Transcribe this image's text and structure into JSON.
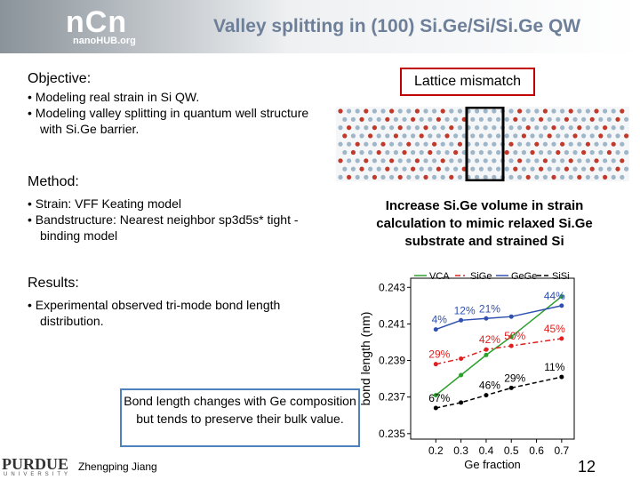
{
  "header": {
    "logo": "nCn",
    "logo_sub": "nanoHUB.org",
    "title": "Valley splitting in (100) Si.Ge/Si/Si.Ge QW"
  },
  "objective": {
    "heading": "Objective:",
    "bullets": [
      "Modeling real strain in Si QW.",
      "Modeling valley splitting in quantum well structure with Si.Ge barrier."
    ]
  },
  "method": {
    "heading": "Method:",
    "bullets": [
      "Strain: VFF Keating model",
      "Bandstructure: Nearest neighbor sp3d5s* tight - binding model"
    ]
  },
  "results": {
    "heading": "Results:",
    "bullets": [
      "Experimental observed tri-mode bond length distribution."
    ]
  },
  "lattice_label": "Lattice mismatch",
  "increase_text": "Increase Si.Ge volume in strain calculation to mimic relaxed Si.Ge substrate and strained Si",
  "callout": "Bond length changes with Ge composition but tends to preserve their bulk value.",
  "footer": {
    "university": "PURDUE",
    "university_sub": "UNIVERSITY",
    "author": "Zhengping Jiang",
    "page": "12"
  },
  "chart_data": {
    "type": "line",
    "y_label": "bond length (nm)",
    "x_label": "Ge fraction",
    "x": [
      0.2,
      0.3,
      0.4,
      0.5,
      0.7
    ],
    "xlim": [
      0.1,
      0.75
    ],
    "xticks": [
      0.2,
      0.3,
      0.4,
      0.5,
      0.6,
      0.7
    ],
    "ylim": [
      0.2347,
      0.2435
    ],
    "yticks": [
      0.235,
      0.237,
      0.239,
      0.241,
      0.243
    ],
    "series": [
      {
        "name": "VCA",
        "color": "#2ca02c",
        "dash": "",
        "values": [
          0.2371,
          0.2382,
          0.2393,
          0.2403,
          0.2425
        ],
        "point_labels": [
          null,
          null,
          null,
          null,
          null
        ]
      },
      {
        "name": "SiGe",
        "color": "#e02020",
        "dash": "6 3 2 3",
        "values": [
          0.2388,
          0.2391,
          0.2396,
          0.2398,
          0.2402
        ],
        "point_labels": [
          "29%",
          null,
          "42%",
          "50%",
          "45%"
        ]
      },
      {
        "name": "GeGe",
        "color": "#3050b0",
        "dash": "",
        "values": [
          0.2407,
          0.2412,
          0.2413,
          0.2414,
          0.242
        ],
        "point_labels": [
          "4%",
          "12%",
          "21%",
          null,
          "44%"
        ]
      },
      {
        "name": "SiSi",
        "color": "#000000",
        "dash": "5 3",
        "values": [
          0.2364,
          0.2367,
          0.2371,
          0.2375,
          0.2381
        ],
        "point_labels": [
          "67%",
          null,
          "46%",
          "29%",
          "11%"
        ]
      }
    ]
  }
}
